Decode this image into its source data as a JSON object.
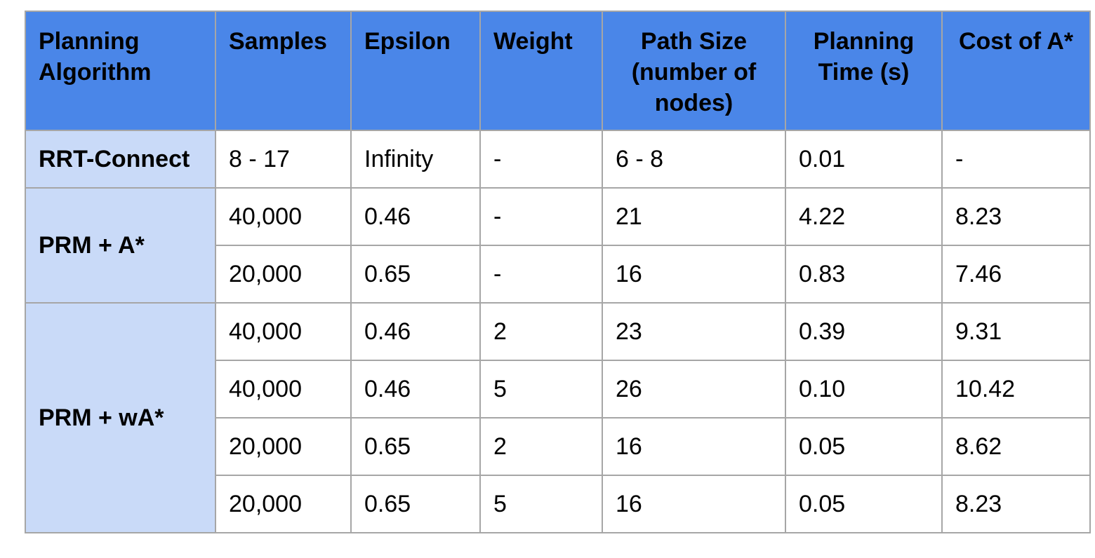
{
  "table": {
    "headers": [
      "Planning Algorithm",
      "Samples",
      "Epsilon",
      "Weight",
      "Path Size (number of nodes)",
      "Planning Time (s)",
      "Cost of A*"
    ],
    "groups": [
      {
        "algorithm": "RRT-Connect",
        "rows": [
          [
            "8 - 17",
            "Infinity",
            "-",
            "6 - 8",
            "0.01",
            "-"
          ]
        ]
      },
      {
        "algorithm": "PRM + A*",
        "rows": [
          [
            "40,000",
            "0.46",
            "-",
            "21",
            "4.22",
            "8.23"
          ],
          [
            "20,000",
            "0.65",
            "-",
            "16",
            "0.83",
            "7.46"
          ]
        ]
      },
      {
        "algorithm": "PRM + wA*",
        "rows": [
          [
            "40,000",
            "0.46",
            "2",
            "23",
            "0.39",
            "9.31"
          ],
          [
            "40,000",
            "0.46",
            "5",
            "26",
            "0.10",
            "10.42"
          ],
          [
            "20,000",
            "0.65",
            "2",
            "16",
            "0.05",
            "8.62"
          ],
          [
            "20,000",
            "0.65",
            "5",
            "16",
            "0.05",
            "8.23"
          ]
        ]
      }
    ]
  },
  "colors": {
    "header_bg": "#4a86e8",
    "algo_bg": "#c9daf8",
    "border": "#a6a6a6"
  }
}
